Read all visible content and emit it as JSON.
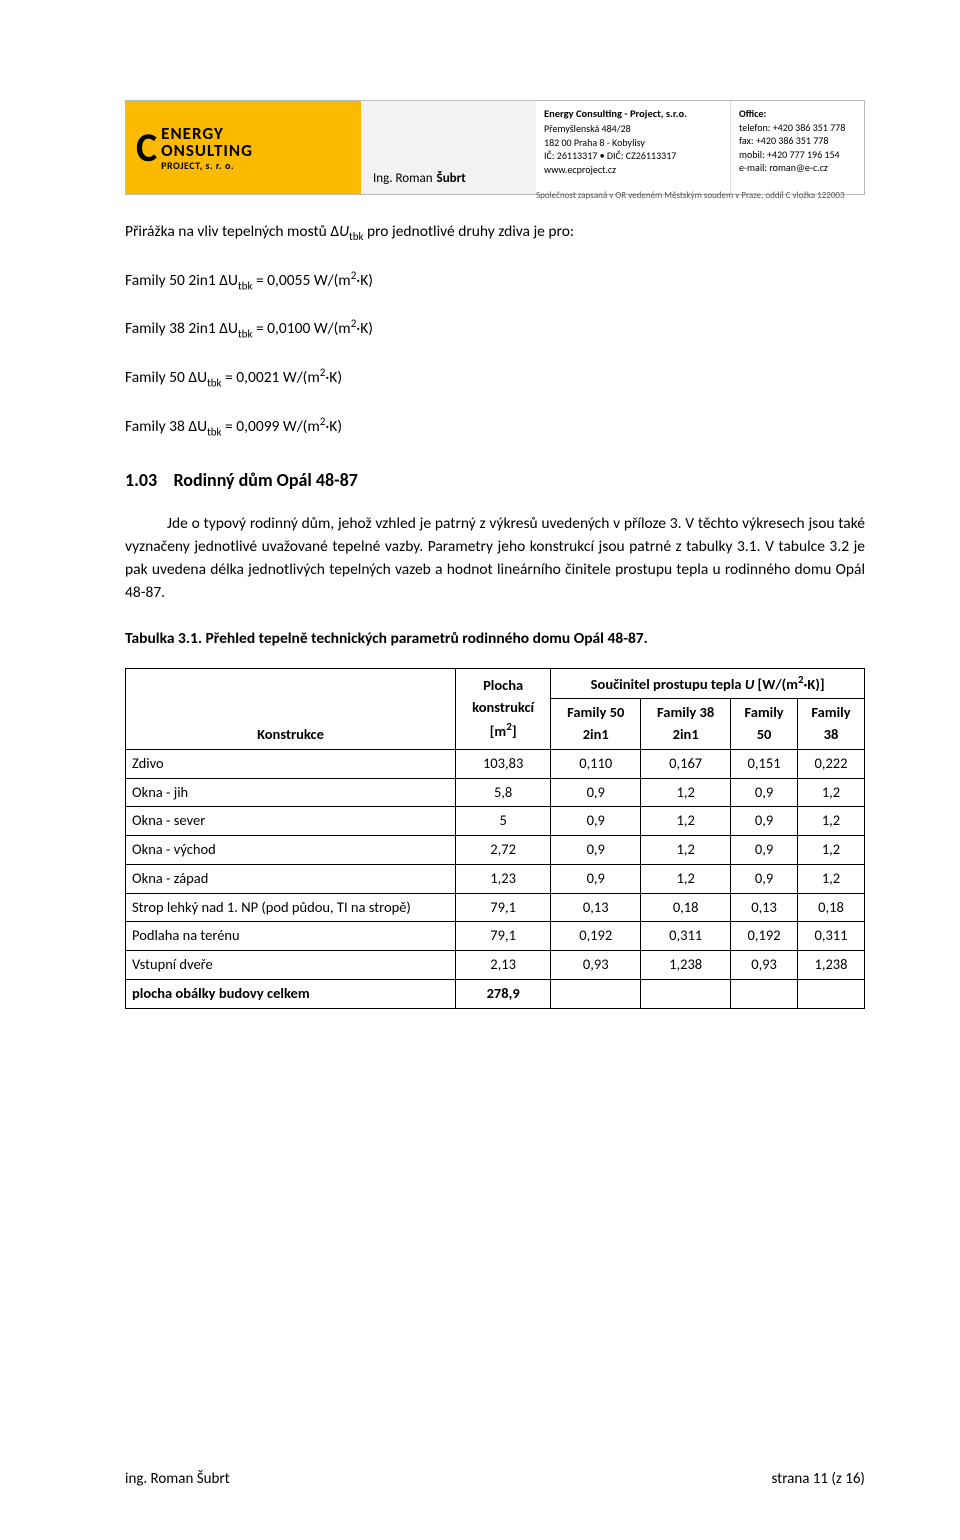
{
  "header": {
    "logo_line1": "ENERGY",
    "logo_line2": "ONSULTING",
    "logo_sub": "PROJECT, s. r. o.",
    "name_prefix": "Ing. Roman",
    "name_last": "Šubrt",
    "company_title": "Energy Consulting - Project, s.r.o.",
    "company_addr1": "Přemyšlenská 484/28",
    "company_addr2": "182 00  Praha 8 - Kobylisy",
    "company_ids": "IČ: 26113317 • DIČ: CZ26113317",
    "company_web": "www.ecproject.cz",
    "office_title": "Office:",
    "office_tel": "telefon: +420 386 351 778",
    "office_fax": "fax: +420 386 351 778",
    "office_mobil": "mobil: +420 777 196 154",
    "office_mail": "e-mail: roman@e-c.cz",
    "footnote": "Společnost zapsaná v OR vedeném Městským soudem v Praze, oddíl C vložka 122003"
  },
  "intro": {
    "line1_pre": "Přirážka na vliv tepelných mostů Δ",
    "line1_sym": "U",
    "line1_sub": "tbk",
    "line1_post": " pro jednotlivé druhy zdiva je pro:",
    "f1": "Family 50 2in1 ΔU",
    "f1_val": " = 0,0055 W/(m",
    "f2": "Family 38 2in1 ΔU",
    "f2_val": " = 0,0100 W/(m",
    "f3": "Family 50 ΔU",
    "f3_val": " = 0,0021 W/(m",
    "f4": "Family 38 ΔU",
    "f4_val": " = 0,0099 W/(m",
    "unit_end": "·K)"
  },
  "section": {
    "number": "1.03",
    "title": "Rodinný dům Opál 48-87",
    "p1": "Jde o typový rodinný dům, jehož vzhled je patrný z výkresů uvedených v příloze 3. V těchto výkresech jsou také vyznačeny jednotlivé uvažované tepelné vazby. Parametry jeho konstrukcí jsou patrné z tabulky 3.1. V tabulce 3.2 je pak uvedena délka jednotlivých tepelných vazeb a hodnot lineárního činitele prostupu tepla u rodinného domu Opál 48-87.",
    "caption": "Tabulka 3.1. Přehled tepelně technických parametrů rodinného domu Opál 48-87."
  },
  "table": {
    "h_konstrukce": "Konstrukce",
    "h_plocha_l1": "Plocha",
    "h_plocha_l2": "konstrukcí",
    "h_plocha_l3": "[m",
    "h_plocha_l3_end": "]",
    "h_soucinitel": "Součinitel prostupu tepla ",
    "h_sou_sym": "U",
    "h_sou_unit": " [W/(m",
    "h_sou_end": "·K)]",
    "h_c1a": "Family 50",
    "h_c1b": "2in1",
    "h_c2a": "Family 38",
    "h_c2b": "2in1",
    "h_c3a": "Family",
    "h_c3b": "50",
    "h_c4a": "Family",
    "h_c4b": "38",
    "rows": [
      {
        "k": "Zdivo",
        "p": "103,83",
        "a": "0,110",
        "b": "0,167",
        "c": "0,151",
        "d": "0,222"
      },
      {
        "k": "Okna - jih",
        "p": "5,8",
        "a": "0,9",
        "b": "1,2",
        "c": "0,9",
        "d": "1,2"
      },
      {
        "k": "Okna - sever",
        "p": "5",
        "a": "0,9",
        "b": "1,2",
        "c": "0,9",
        "d": "1,2"
      },
      {
        "k": "Okna  - východ",
        "p": "2,72",
        "a": "0,9",
        "b": "1,2",
        "c": "0,9",
        "d": "1,2"
      },
      {
        "k": "Okna  - západ",
        "p": "1,23",
        "a": "0,9",
        "b": "1,2",
        "c": "0,9",
        "d": "1,2"
      },
      {
        "k": "Strop lehký nad 1. NP (pod půdou, TI na stropě)",
        "p": "79,1",
        "a": "0,13",
        "b": "0,18",
        "c": "0,13",
        "d": "0,18"
      },
      {
        "k": "Podlaha na terénu",
        "p": "79,1",
        "a": "0,192",
        "b": "0,311",
        "c": "0,192",
        "d": "0,311"
      },
      {
        "k": "Vstupní dveře",
        "p": "2,13",
        "a": "0,93",
        "b": "1,238",
        "c": "0,93",
        "d": "1,238"
      }
    ],
    "total_label": "plocha obálky budovy celkem",
    "total_val": "278,9"
  },
  "footer": {
    "left": "ing. Roman Šubrt",
    "right": "strana 11 (z 16)"
  }
}
